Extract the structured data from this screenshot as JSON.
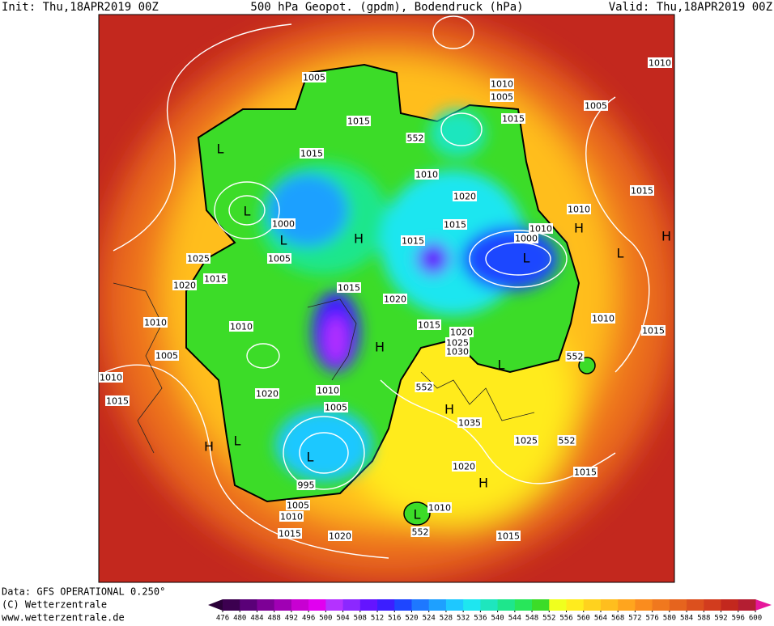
{
  "header": {
    "init": "Init: Thu,18APR2019 00Z",
    "title": "500 hPa Geopot. (gpdm), Bodendruck (hPa)",
    "valid": "Valid: Thu,18APR2019 00Z"
  },
  "footer": {
    "source": "Data: GFS OPERATIONAL 0.250°",
    "copyright": "(C) Wetterzentrale",
    "url": "www.wetterzentrale.de"
  },
  "colorbar": {
    "ticks": [
      476,
      480,
      484,
      488,
      492,
      496,
      500,
      504,
      508,
      512,
      516,
      520,
      524,
      528,
      532,
      536,
      540,
      544,
      548,
      552,
      556,
      560,
      564,
      568,
      572,
      576,
      580,
      584,
      588,
      592,
      596,
      600
    ],
    "colors": [
      "#3c0050",
      "#5a0078",
      "#7d0096",
      "#a000b4",
      "#c800d2",
      "#e100f0",
      "#b432ff",
      "#8c28ff",
      "#6414ff",
      "#3c1eff",
      "#1e46ff",
      "#1e78ff",
      "#1ea0ff",
      "#1ec8ff",
      "#1ee6f0",
      "#1ee6be",
      "#1ee68c",
      "#28e65a",
      "#3cdc28",
      "#f0ff1e",
      "#ffeb1e",
      "#ffd21e",
      "#ffbe1e",
      "#ffa51e",
      "#fa8c1e",
      "#f0781e",
      "#e6641e",
      "#dc501e",
      "#d23c1e",
      "#c3281e",
      "#b41e32"
    ],
    "under": "#2a0038",
    "over": "#e6189b"
  },
  "map": {
    "labels": [
      "1005",
      "1015",
      "1015",
      "L",
      "L",
      "1000",
      "L",
      "1005",
      "H",
      "1010",
      "1020",
      "1015",
      "1015",
      "1010",
      "1005",
      "1015",
      "1005",
      "1010",
      "1010",
      "H",
      "L",
      "L",
      "H",
      "1015",
      "1025",
      "1020",
      "1015",
      "1010",
      "1010",
      "1005",
      "1010",
      "1015",
      "H",
      "L",
      "1020",
      "1015",
      "1020",
      "1010",
      "1005",
      "H",
      "L",
      "995",
      "1005",
      "1010",
      "1015",
      "1020",
      "L",
      "1010",
      "552",
      "1015",
      "1020",
      "1025",
      "1030",
      "L",
      "552",
      "H",
      "1035",
      "1025",
      "552",
      "1020",
      "H",
      "1015",
      "1015",
      "1010",
      "1015",
      "552",
      "552",
      "1000",
      "1010"
    ]
  }
}
